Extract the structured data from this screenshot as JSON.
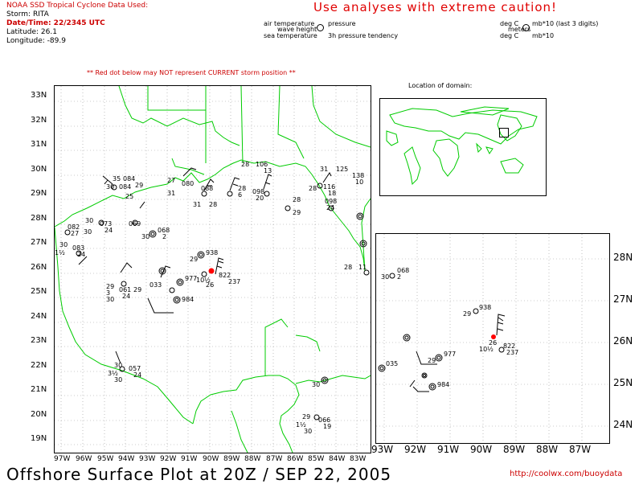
{
  "header": {
    "source_label": "NOAA SSD Tropical Cyclone Data Used:",
    "storm_label": "Storm: RITA",
    "datetime_label": "Date/Time: 22/2345 UTC",
    "latitude_label": "Latitude: 26.1",
    "longitude_label": "Longitude: -89.9",
    "caution": "Use analyses with extreme caution!",
    "red_dot_note": "** Red dot below may NOT represent CURRENT storm position **"
  },
  "legend": {
    "air_temperature": "air temperature",
    "pressure": "pressure",
    "wave_height": "wave height",
    "sea_temperature": "sea temperature",
    "pressure_tendency": "3h pressure tendency",
    "unit_deg_c_1": "deg C",
    "unit_mb_1": "mb*10 (last 3 digits)",
    "unit_meters": "meters",
    "unit_deg_c_2": "deg C",
    "unit_mb_2": "mb*10"
  },
  "inset": {
    "title": "Location of domain:"
  },
  "main_map": {
    "lat_labels": [
      "33N",
      "32N",
      "31N",
      "30N",
      "29N",
      "28N",
      "27N",
      "26N",
      "25N",
      "24N",
      "23N",
      "22N",
      "21N",
      "20N",
      "19N"
    ],
    "lon_labels": [
      "97W",
      "96W",
      "95W",
      "94W",
      "93W",
      "92W",
      "91W",
      "90W",
      "89W",
      "88W",
      "87W",
      "86W",
      "85W",
      "84W",
      "83W"
    ],
    "storm_marker_color": "#ff0000",
    "coast_color": "#00cc00",
    "grid_color": "#999999",
    "station_labels": [
      {
        "id": "s1",
        "lines": [
          "35",
          "084",
          "30",
          "29"
        ]
      },
      {
        "id": "s2",
        "lines": [
          "30",
          "084",
          "27",
          "25"
        ]
      },
      {
        "id": "s3",
        "lines": [
          "27",
          "080",
          "31",
          "29"
        ]
      },
      {
        "id": "s4",
        "lines": [
          "28",
          "106",
          "13"
        ]
      },
      {
        "id": "s5",
        "lines": [
          "31",
          "125",
          "25",
          "138",
          "10"
        ]
      },
      {
        "id": "s6",
        "lines": [
          "28",
          "088",
          "31",
          "28"
        ]
      },
      {
        "id": "s7",
        "lines": [
          "28",
          "098",
          "6",
          "20"
        ]
      },
      {
        "id": "s8",
        "lines": [
          "28",
          "116",
          "25",
          "18"
        ]
      },
      {
        "id": "s9",
        "lines": [
          "28",
          "098",
          "29",
          "24"
        ]
      },
      {
        "id": "s10",
        "lines": [
          "30",
          "073",
          "30",
          "24"
        ]
      },
      {
        "id": "s11",
        "lines": [
          "082",
          "27",
          "10"
        ]
      },
      {
        "id": "s12",
        "lines": [
          "30",
          "083",
          "1½",
          "24"
        ]
      },
      {
        "id": "s13",
        "lines": [
          "069"
        ]
      },
      {
        "id": "s14",
        "lines": [
          "068",
          "30",
          "2"
        ]
      },
      {
        "id": "s15",
        "lines": [
          "29",
          "938"
        ]
      },
      {
        "id": "s16",
        "lines": [
          "822",
          "10½",
          "26",
          "237"
        ]
      },
      {
        "id": "s17",
        "lines": [
          "977"
        ]
      },
      {
        "id": "s18",
        "lines": [
          "29",
          "061",
          "3",
          "24",
          "30"
        ]
      },
      {
        "id": "s19",
        "lines": [
          "29",
          "033"
        ]
      },
      {
        "id": "s20",
        "lines": [
          "984"
        ]
      },
      {
        "id": "s21",
        "lines": [
          "30",
          "057",
          "3½",
          "24",
          "30"
        ]
      },
      {
        "id": "s22",
        "lines": [
          "29",
          "066",
          "1½",
          "19",
          "30"
        ]
      },
      {
        "id": "s23",
        "lines": [
          "28",
          "11"
        ]
      },
      {
        "id": "s24",
        "lines": [
          "30"
        ]
      }
    ]
  },
  "zoom_map": {
    "lat_labels": [
      "28N",
      "27N",
      "26N",
      "25N",
      "24N"
    ],
    "lon_labels": [
      "93W",
      "92W",
      "91W",
      "90W",
      "89W",
      "88W",
      "87W"
    ],
    "station_labels": [
      {
        "id": "z1",
        "lines": [
          "068",
          "30",
          "2"
        ]
      },
      {
        "id": "z2",
        "lines": [
          "29",
          "938"
        ]
      },
      {
        "id": "z3",
        "lines": [
          "822",
          "10½",
          "26",
          "237"
        ]
      },
      {
        "id": "z4",
        "lines": [
          "977",
          "29"
        ]
      },
      {
        "id": "z5",
        "lines": [
          "035"
        ]
      },
      {
        "id": "z6",
        "lines": [
          "984"
        ]
      }
    ]
  },
  "footer": {
    "title": "Offshore Surface Plot at 20Z / SEP 22, 2005",
    "url": "http://coolwx.com/buoydata"
  }
}
